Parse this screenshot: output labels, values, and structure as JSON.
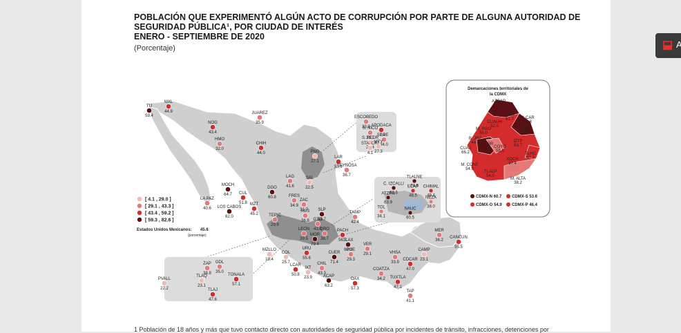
{
  "document": {
    "title_lines": [
      "POBLACIÓN QUE EXPERIMENTÓ ALGÚN ACTO DE CORRUPCIÓN POR PARTE DE ALGUNA AUTORIDAD DE",
      "SEGURIDAD PÚBLICA¹, POR CIUDAD DE INTERÉS",
      "ENERO - SEPTIEMBRE DE 2020"
    ],
    "unit": "(Porcentaje)",
    "footnote": "1 Población de 18 años y más que tuvo contacto directo con autoridades de seguridad pública por incidentes de tránsito, infracciones, detenciones por"
  },
  "viewer": {
    "pdf_button_letter": "A"
  },
  "legend": {
    "ranges": [
      {
        "label": "[ 4.1 , 29.0 ]",
        "color": "#f3b8b0"
      },
      {
        "label": "[ 29.1 , 43.3 ]",
        "color": "#e57979"
      },
      {
        "label": "[ 43.4 , 59.2 ]",
        "color": "#d42c2c"
      },
      {
        "label": "[ 59.3 , 82.6 ]",
        "color": "#5b0f12"
      }
    ],
    "national_label": "Estados Unidos Mexicanos:",
    "national_value": "45.6",
    "national_unit": "(porcentaje)"
  },
  "inset_cdmx": {
    "title_lines": [
      "Demarcaciones territoriales de",
      "la CDMX"
    ],
    "districts": [
      {
        "name": "AZCAP",
        "value": "57.1"
      },
      {
        "name": "GAM",
        "value": "61.7"
      },
      {
        "name": "V. CAR",
        "value": "76.8"
      },
      {
        "name": "CUAUH",
        "value": "52.0"
      },
      {
        "name": "M. HGO",
        "value": "56.0"
      },
      {
        "name": "IZTC",
        "value": "40.7"
      },
      {
        "name": "B. JRZ",
        "value": "44.3"
      },
      {
        "name": "A. OBR",
        "value": "23.1"
      },
      {
        "name": "COYO",
        "value": "58.5"
      },
      {
        "name": "IZTP",
        "value": "63.7"
      },
      {
        "name": "CUAJ",
        "value": "66.2"
      },
      {
        "name": "TLHC",
        "value": "47.3"
      },
      {
        "name": "XOCH",
        "value": "37.4"
      },
      {
        "name": "M. CONT",
        "value": "54.8"
      },
      {
        "name": "TLALP",
        "value": "54.0"
      },
      {
        "name": "M. ALTA",
        "value": "38.2"
      }
    ],
    "zones": [
      {
        "label": "CDMX-N",
        "value": "60.7",
        "color": "#5b0f12"
      },
      {
        "label": "CDMX-S",
        "value": "53.6",
        "color": "#d42c2c"
      },
      {
        "label": "CDMX-O",
        "value": "54.9",
        "color": "#d42c2c"
      },
      {
        "label": "CDMX-P",
        "value": "46.4",
        "color": "#d42c2c"
      }
    ]
  },
  "cities": [
    {
      "name": "TIJ",
      "value": "59.4",
      "color": "#5b0f12"
    },
    {
      "name": "MXL",
      "value": "44.9",
      "color": "#d42c2c"
    },
    {
      "name": "NOG",
      "value": "43.4",
      "color": "#d42c2c"
    },
    {
      "name": "JUAREZ",
      "value": "35.9",
      "color": "#e57979"
    },
    {
      "name": "HMO",
      "value": "32.0",
      "color": "#e57979"
    },
    {
      "name": "CHIH",
      "value": "44.0",
      "color": "#d42c2c"
    },
    {
      "name": "ESCOBEDO",
      "value": "33.9",
      "color": "#e57979"
    },
    {
      "name": "S. NICO",
      "value": "31.1",
      "color": "#e57979"
    },
    {
      "name": "APODACA",
      "value": "57.5",
      "color": "#d42c2c"
    },
    {
      "name": "S. PEDR",
      "value": "21.4",
      "color": "#f3b8b0"
    },
    {
      "name": "GPE",
      "value": "34.0",
      "color": "#e57979"
    },
    {
      "name": "MTY",
      "value": "27.3",
      "color": "#f3b8b0"
    },
    {
      "name": "STA. CAT",
      "value": "4.1",
      "color": "#f3b8b0"
    },
    {
      "name": "PNG",
      "value": "27.1",
      "color": "#f3b8b0"
    },
    {
      "name": "LAR",
      "value": "55.9",
      "color": "#d42c2c"
    },
    {
      "name": "REYNOSA",
      "value": "36.7",
      "color": "#e57979"
    },
    {
      "name": "MOCH",
      "value": "64.7",
      "color": "#5b0f12"
    },
    {
      "name": "LAG",
      "value": "41.6",
      "color": "#e57979"
    },
    {
      "name": "SAL",
      "value": "22.5",
      "color": "#f3b8b0"
    },
    {
      "name": "CUL",
      "value": "51.8",
      "color": "#d42c2c"
    },
    {
      "name": "DGO",
      "value": "60.8",
      "color": "#5b0f12"
    },
    {
      "name": "LA PAZ",
      "value": "40.6",
      "color": "#e57979"
    },
    {
      "name": "FRES",
      "value": "34.9",
      "color": "#e57979"
    },
    {
      "name": "ZAC",
      "value": "31.7",
      "color": "#e57979"
    },
    {
      "name": "LOS CABOS",
      "value": "62.0",
      "color": "#5b0f12"
    },
    {
      "name": "MZT",
      "value": "45.2",
      "color": "#d42c2c"
    },
    {
      "name": "AGS",
      "value": "36.8",
      "color": "#e57979"
    },
    {
      "name": "SLP",
      "value": "60.7",
      "color": "#5b0f12"
    },
    {
      "name": "TEPIC",
      "value": "29.9",
      "color": "#e57979"
    },
    {
      "name": "GTO",
      "value": "43.0",
      "color": "#e57979"
    },
    {
      "name": "TAMP",
      "value": "42.4",
      "color": "#e57979"
    },
    {
      "name": "LEON",
      "value": "39.5",
      "color": "#e57979"
    },
    {
      "name": "QRO",
      "value": "38.7",
      "color": "#e57979"
    },
    {
      "name": "MOR",
      "value": "79.4",
      "color": "#5b0f12"
    },
    {
      "name": "PACH",
      "value": "56.7",
      "color": "#d42c2c"
    },
    {
      "name": "TLAX",
      "value": "60.3",
      "color": "#5b0f12"
    },
    {
      "name": "URU",
      "value": "55.6",
      "color": "#d42c2c"
    },
    {
      "name": "VER",
      "value": "29.1",
      "color": "#e57979"
    },
    {
      "name": "MZLLO",
      "value": "19.4",
      "color": "#f3b8b0"
    },
    {
      "name": "COL",
      "value": "25.7",
      "color": "#f3b8b0"
    },
    {
      "name": "CUER",
      "value": "71.4",
      "color": "#5b0f12"
    },
    {
      "name": "PUE",
      "value": "29.3",
      "color": "#e57979"
    },
    {
      "name": "LCAR",
      "value": "50.8",
      "color": "#d42c2c"
    },
    {
      "name": "IXT",
      "value": "23.9",
      "color": "#f3b8b0"
    },
    {
      "name": "CHIL",
      "value": "43.3",
      "color": "#e57979"
    },
    {
      "name": "ZAP",
      "value": "38.8",
      "color": "#e57979"
    },
    {
      "name": "GDL",
      "value": "35.0",
      "color": "#e57979"
    },
    {
      "name": "TONALA",
      "value": "57.1",
      "color": "#d42c2c"
    },
    {
      "name": "PVALL",
      "value": "22.2",
      "color": "#f3b8b0"
    },
    {
      "name": "TLAQ",
      "value": "23.1",
      "color": "#f3b8b0"
    },
    {
      "name": "TLAJ",
      "value": "47.6",
      "color": "#d42c2c"
    },
    {
      "name": "ACAP",
      "value": "63.2",
      "color": "#5b0f12"
    },
    {
      "name": "OAX",
      "value": "57.3",
      "color": "#d42c2c"
    },
    {
      "name": "COATZA",
      "value": "34.2",
      "color": "#e57979"
    },
    {
      "name": "VHSA",
      "value": "33.9",
      "color": "#e57979"
    },
    {
      "name": "CAMP",
      "value": "23.1",
      "color": "#f3b8b0"
    },
    {
      "name": "CDCAR",
      "value": "47.0",
      "color": "#d42c2c"
    },
    {
      "name": "MER",
      "value": "36.2",
      "color": "#e57979"
    },
    {
      "name": "CANCUN",
      "value": "55.5",
      "color": "#d42c2c"
    },
    {
      "name": "TUXTLA",
      "value": "47.1",
      "color": "#d42c2c"
    },
    {
      "name": "TAP",
      "value": "41.1",
      "color": "#e57979"
    }
  ],
  "inset_valle_mexico": [
    {
      "name": "TLALNE",
      "value": "74.6",
      "color": "#5b0f12"
    },
    {
      "name": "C. IZCALLI",
      "value": "62.6",
      "color": "#5b0f12"
    },
    {
      "name": "ECAP",
      "value": "48.5",
      "color": "#d42c2c"
    },
    {
      "name": "CHIMAL",
      "value": "49.4",
      "color": "#d42c2c"
    },
    {
      "name": "ATZPN",
      "value": "63.9",
      "color": "#5b0f12"
    },
    {
      "name": "NEZA",
      "value": "38.0",
      "color": "#e57979"
    },
    {
      "name": "TOL",
      "value": "34.1",
      "color": "#e57979"
    },
    {
      "name": "NAUC",
      "value": "60.5",
      "color": "#5b0f12"
    }
  ]
}
